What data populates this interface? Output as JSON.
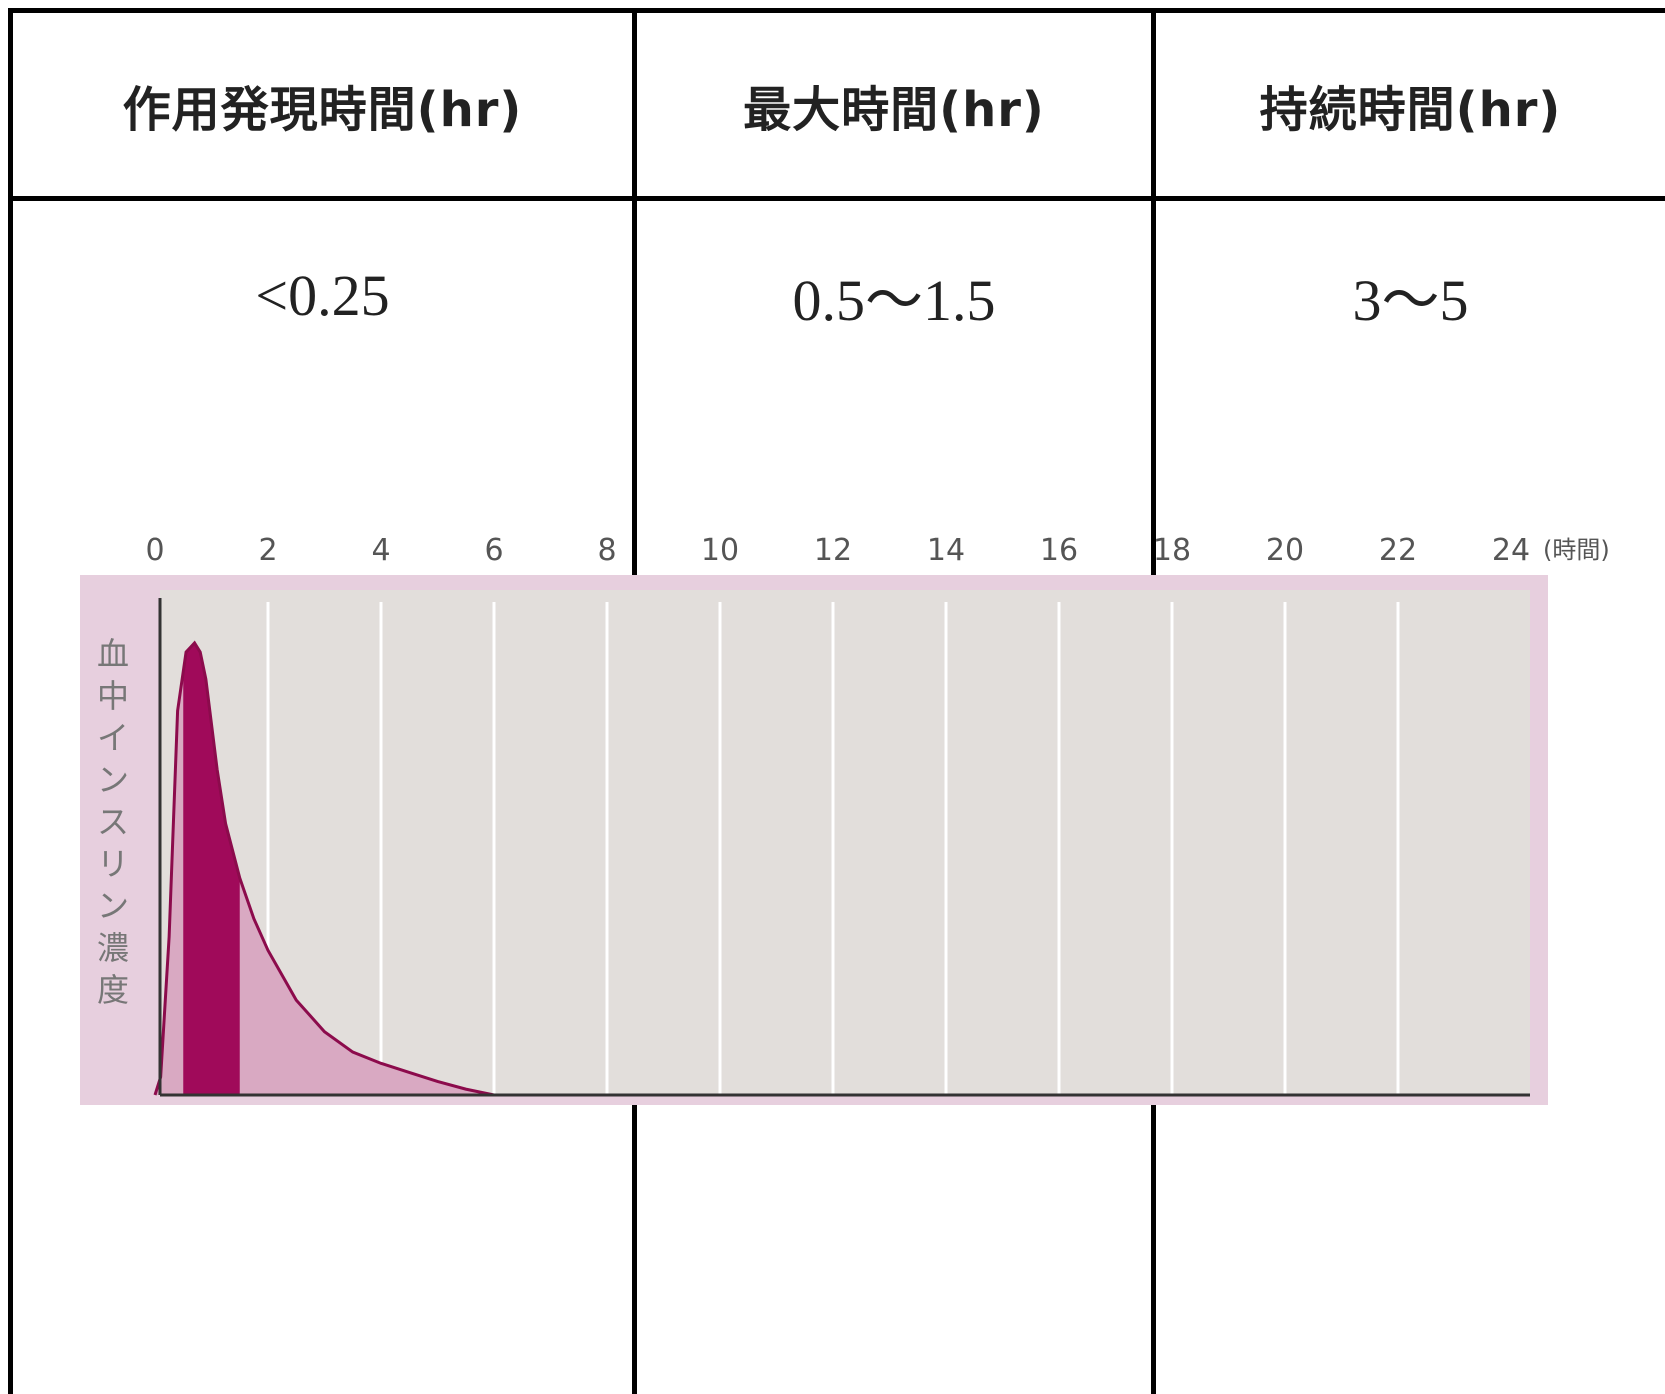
{
  "table": {
    "headers": [
      "作用発現時間(hr)",
      "最大時間(hr)",
      "持続時間(hr)"
    ],
    "values": [
      "<0.25",
      "0.5～1.5",
      "3～5"
    ]
  },
  "chart_data": {
    "type": "area",
    "x_ticks": [
      "0",
      "2",
      "4",
      "6",
      "8",
      "10",
      "12",
      "14",
      "16",
      "18",
      "20",
      "22",
      "24"
    ],
    "x_unit_label": "(時間)",
    "ylabel": "血中インスリン濃度",
    "xlim": [
      0,
      24
    ],
    "ylim": [
      0,
      1
    ],
    "grid": true,
    "series": [
      {
        "x": [
          0,
          0.1,
          0.25,
          0.4,
          0.55,
          0.7,
          0.8,
          0.9,
          1.0,
          1.1,
          1.25,
          1.5,
          1.75,
          2.0,
          2.5,
          3.0,
          3.5,
          4.0,
          4.5,
          5.0,
          5.5,
          6.0
        ],
        "values": [
          0,
          0.04,
          0.35,
          0.85,
          0.98,
          1.0,
          0.98,
          0.92,
          0.82,
          0.72,
          0.6,
          0.48,
          0.39,
          0.32,
          0.21,
          0.14,
          0.095,
          0.07,
          0.05,
          0.03,
          0.013,
          0
        ]
      }
    ],
    "highlight_range": [
      0.5,
      1.5
    ],
    "colors": {
      "panel_border": "#e7cfde",
      "plot_bg": "#e2dedb",
      "curve_fill": "#d9a9c2",
      "highlight_fill": "#a00a5a",
      "curve_line": "#8c0b4c",
      "axis": "#333333",
      "grid": "#ffffff",
      "tick_text": "#555555"
    }
  }
}
